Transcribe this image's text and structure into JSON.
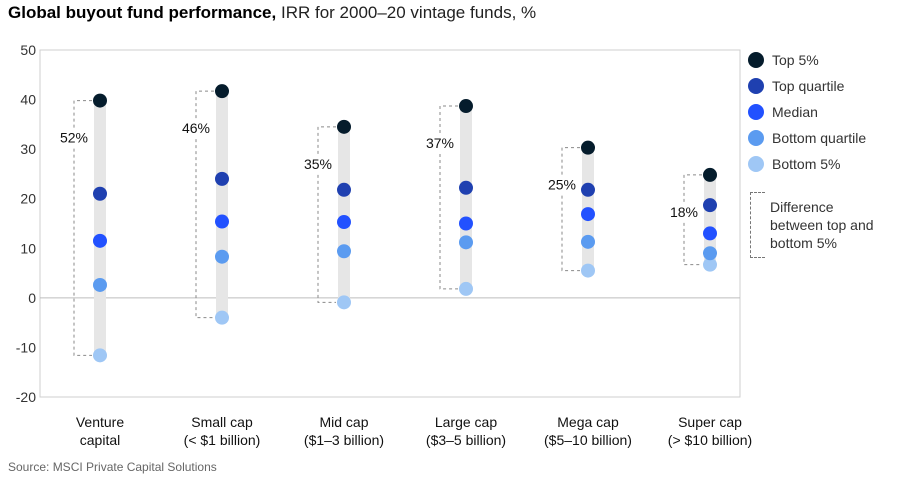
{
  "title": {
    "bold": "Global buyout fund performance,",
    "sub": "IRR for 2000–20 vintage funds, %"
  },
  "source": "Source: MSCI Private Capital Solutions",
  "legend": {
    "items": [
      {
        "label": "Top 5%",
        "color": "#051c2c"
      },
      {
        "label": "Top quartile",
        "color": "#1f40b0"
      },
      {
        "label": "Median",
        "color": "#2251ff"
      },
      {
        "label": "Bottom quartile",
        "color": "#5b9bf0"
      },
      {
        "label": "Bottom 5%",
        "color": "#9fc7f5"
      }
    ],
    "difference_note": "Difference between top and bottom 5%"
  },
  "chart_data": {
    "type": "scatter",
    "title": "Global buyout fund performance, IRR for 2000–20 vintage funds, %",
    "ylim": [
      -20,
      50
    ],
    "yticks": [
      "50",
      "40",
      "30",
      "20",
      "10",
      "0",
      "-10",
      "-20"
    ],
    "ytick_values": [
      50,
      40,
      30,
      20,
      10,
      0,
      -10,
      -20
    ],
    "categories": [
      [
        "Venture",
        "capital"
      ],
      [
        "Small cap",
        "(< $1 billion)"
      ],
      [
        "Mid cap",
        "($1–3 billion)"
      ],
      [
        "Large cap",
        "($3–5 billion)"
      ],
      [
        "Mega cap",
        "($5–10 billion)"
      ],
      [
        "Super cap",
        "(> $10 billion)"
      ]
    ],
    "series": [
      {
        "name": "Top 5%",
        "values": [
          39.8,
          41.7,
          34.5,
          38.7,
          30.3,
          24.8
        ]
      },
      {
        "name": "Top quartile",
        "values": [
          21.0,
          24.0,
          21.8,
          22.2,
          21.8,
          18.7
        ]
      },
      {
        "name": "Median",
        "values": [
          11.5,
          15.4,
          15.3,
          15.0,
          16.9,
          13.0
        ]
      },
      {
        "name": "Bottom quartile",
        "values": [
          2.6,
          8.3,
          9.4,
          11.2,
          11.3,
          9.0
        ]
      },
      {
        "name": "Bottom 5%",
        "values": [
          -11.6,
          -4.0,
          -0.9,
          1.8,
          5.5,
          6.7
        ]
      }
    ],
    "difference_labels": [
      "52%",
      "46%",
      "35%",
      "37%",
      "25%",
      "18%"
    ]
  }
}
